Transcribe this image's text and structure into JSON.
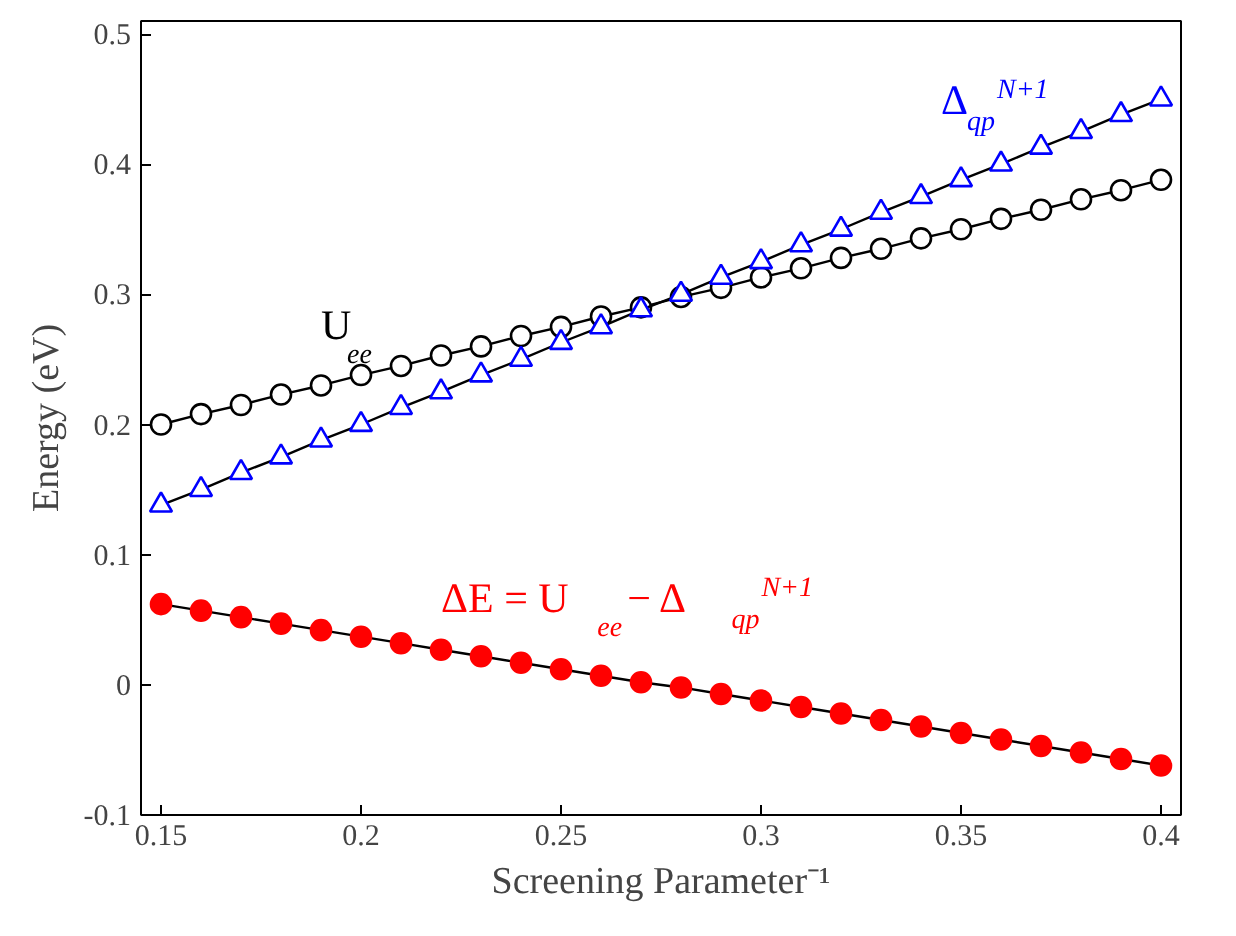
{
  "chart_data": {
    "type": "line",
    "xlabel": "Screening Parameter⁻¹",
    "ylabel": "Energy (eV)",
    "x": [
      0.15,
      0.16,
      0.17,
      0.18,
      0.19,
      0.2,
      0.21,
      0.22,
      0.23,
      0.24,
      0.25,
      0.26,
      0.27,
      0.28,
      0.29,
      0.3,
      0.31,
      0.32,
      0.33,
      0.34,
      0.35,
      0.36,
      0.37,
      0.38,
      0.39,
      0.4
    ],
    "series": [
      {
        "name": "U$_{ee}$",
        "color": "#000000",
        "marker": "circle",
        "values": [
          0.2,
          0.208,
          0.215,
          0.223,
          0.23,
          0.238,
          0.245,
          0.253,
          0.26,
          0.268,
          0.275,
          0.283,
          0.29,
          0.298,
          0.305,
          0.313,
          0.32,
          0.328,
          0.335,
          0.343,
          0.35,
          0.358,
          0.365,
          0.373,
          0.38,
          0.388
        ]
      },
      {
        "name": "Δ$_{qp}$$^{N+1}$",
        "color": "#0000ff",
        "marker": "triangle",
        "values": [
          0.138,
          0.15,
          0.163,
          0.175,
          0.188,
          0.2,
          0.213,
          0.225,
          0.238,
          0.25,
          0.263,
          0.275,
          0.288,
          0.3,
          0.313,
          0.325,
          0.338,
          0.35,
          0.363,
          0.375,
          0.388,
          0.4,
          0.413,
          0.425,
          0.438,
          0.45
        ]
      },
      {
        "name": "ΔE = U$_{ee}$ − Δ$_{qp}$$^{N+1}$",
        "color": "#ff0000",
        "marker": "circle",
        "values": [
          0.062,
          0.057,
          0.052,
          0.047,
          0.042,
          0.037,
          0.032,
          0.027,
          0.022,
          0.017,
          0.012,
          0.007,
          0.002,
          -0.002,
          -0.007,
          -0.012,
          -0.017,
          -0.022,
          -0.027,
          -0.032,
          -0.037,
          -0.042,
          -0.047,
          -0.052,
          -0.057,
          -0.062
        ]
      }
    ],
    "xlim": [
      0.145,
      0.405
    ],
    "ylim": [
      -0.1,
      0.51
    ],
    "xticks": [
      0.15,
      0.2,
      0.25,
      0.3,
      0.35,
      0.4
    ],
    "yticks": [
      -0.1,
      0,
      0.1,
      0.2,
      0.3,
      0.4,
      0.5
    ],
    "grid": false,
    "line_style": "solid"
  }
}
